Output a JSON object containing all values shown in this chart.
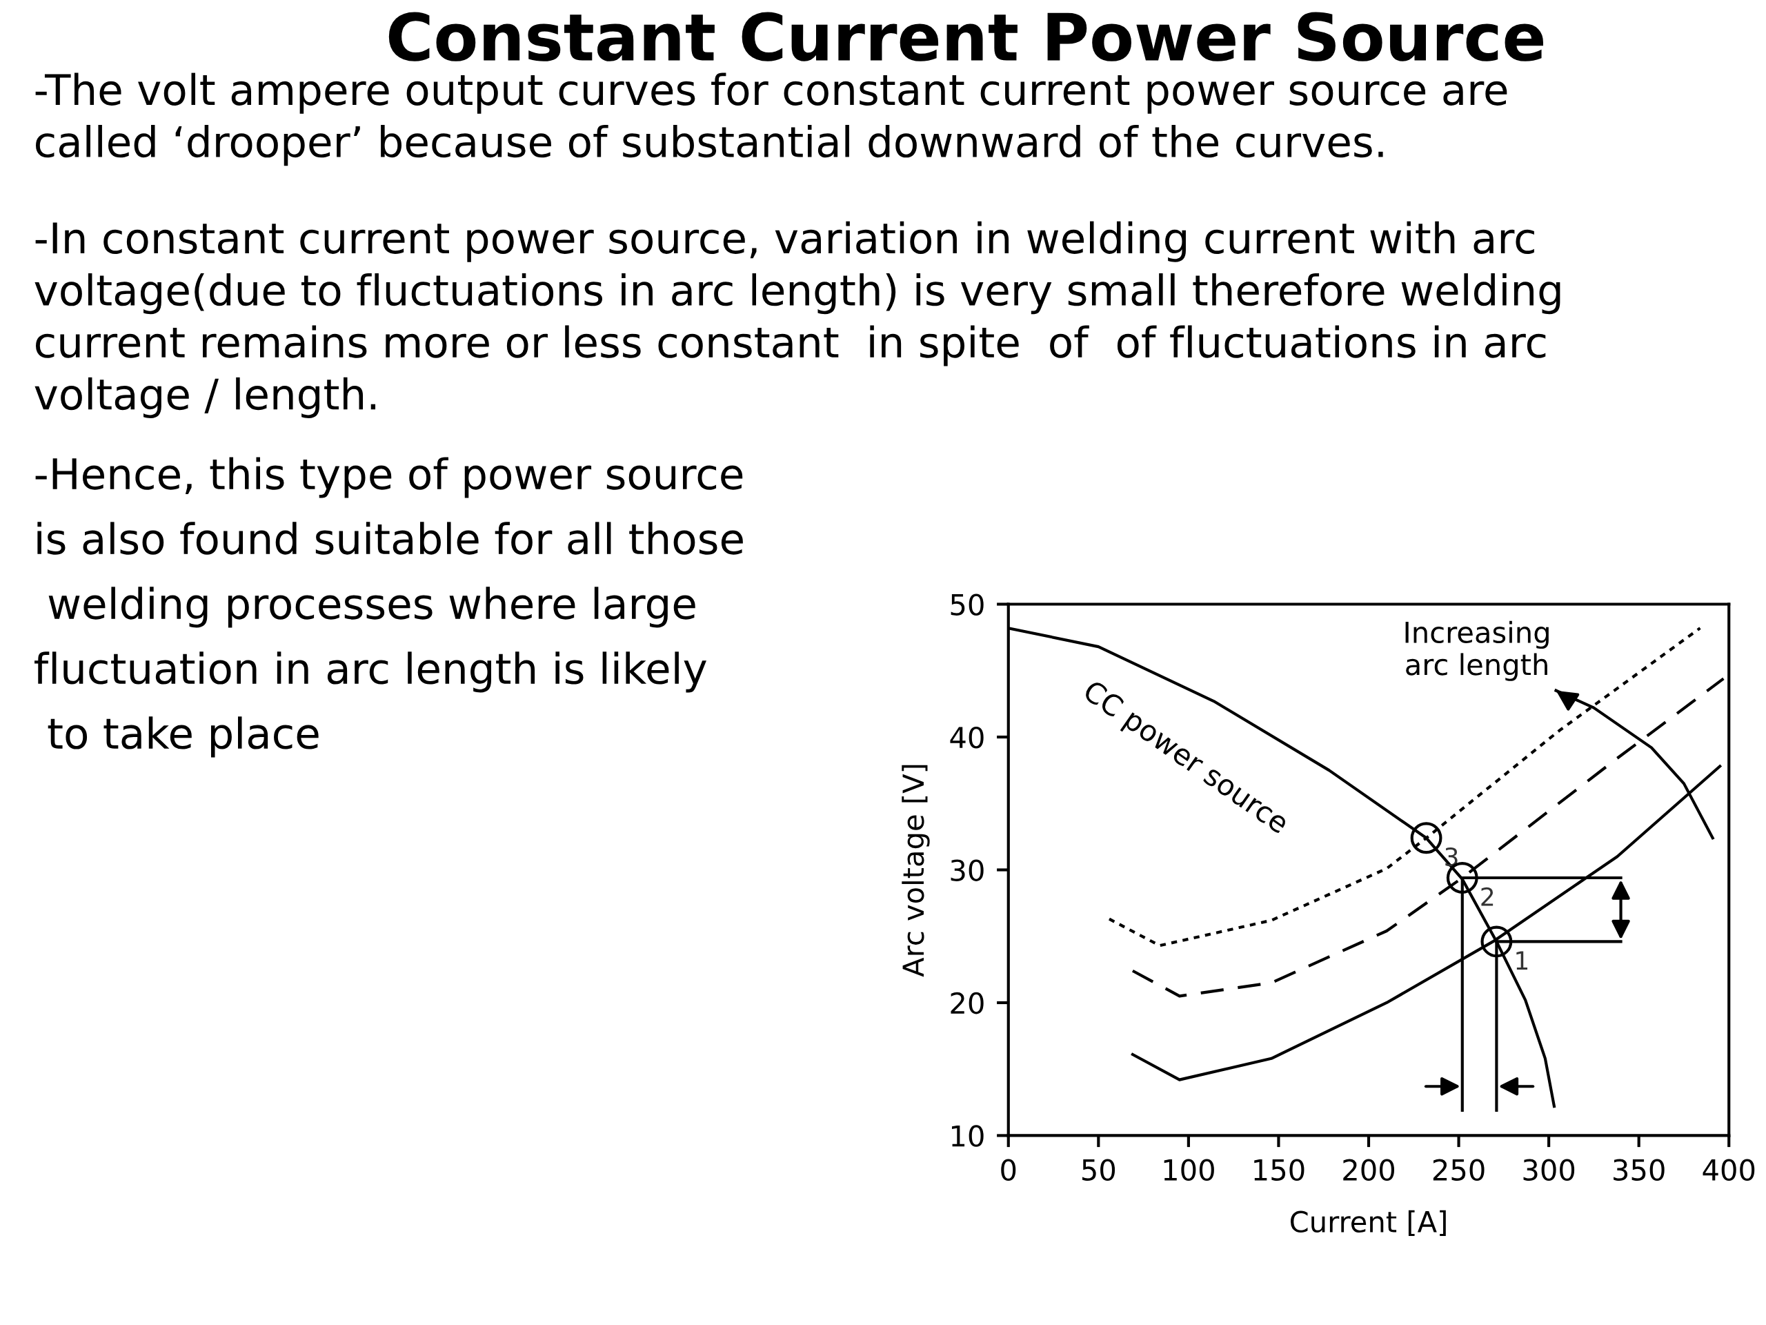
{
  "chart_data": {
    "type": "line",
    "title": "Constant Current Power Source",
    "annotations": [
      "-The volt ampere output curves for constant current power source are\ncalled ‘drooper’ because of substantial downward of the curves.",
      "-In constant current power source, variation in welding current with arc\nvoltage(due to fluctuations in arc length) is very small therefore welding\ncurrent remains more or less constant  in spite  of  of fluctuations in arc\nvoltage / length.",
      "-Hence, this type of power source\nis also found suitable for all those\n welding processes where large\nfluctuation in arc length is likely\n to take place",
      {
        "text": "Increasing\narc length",
        "x": 304,
        "y": 43.5
      },
      {
        "text": "1",
        "x": 271,
        "y": 24.6
      },
      {
        "text": "2",
        "x": 252,
        "y": 29.4
      },
      {
        "text": "3",
        "x": 232,
        "y": 32.4
      }
    ],
    "xlabel": "Current [A]",
    "ylabel": "Arc voltage [V]",
    "xlim": [
      0,
      400
    ],
    "ylim": [
      10,
      50
    ],
    "xticks": [
      0,
      50,
      100,
      150,
      200,
      250,
      300,
      350,
      400
    ],
    "yticks": [
      10,
      20,
      30,
      40,
      50
    ],
    "grid": false,
    "legend": false,
    "series": [
      {
        "name": "CC power source",
        "color": "#000000",
        "line_style": "solid",
        "x": [
          0,
          50,
          114,
          178,
          232,
          252,
          271,
          287,
          298,
          303
        ],
        "values": [
          48.2,
          46.8,
          42.7,
          37.5,
          32.4,
          29.3,
          24.6,
          20.2,
          15.8,
          12.2
        ]
      },
      {
        "color": "#000000",
        "line_style": "solid",
        "x": [
          69,
          95,
          146,
          210,
          269,
          338,
          395
        ],
        "values": [
          16.1,
          14.2,
          15.8,
          20.0,
          24.6,
          31.0,
          37.8
        ]
      },
      {
        "color": "#000000",
        "line_style": "dashed",
        "x": [
          69,
          95,
          146,
          210,
          252,
          338,
          397
        ],
        "values": [
          22.4,
          20.5,
          21.5,
          25.4,
          29.4,
          38.4,
          44.4
        ]
      },
      {
        "color": "#000000",
        "line_style": "dotted",
        "x": [
          56,
          84,
          146,
          210,
          232,
          306,
          384
        ],
        "values": [
          26.3,
          24.3,
          26.2,
          30.1,
          32.4,
          40.5,
          48.2
        ]
      },
      {
        "color": "#000000",
        "line_style": "solid",
        "x": [
          391,
          375,
          357,
          325,
          304
        ],
        "values": [
          32.4,
          36.5,
          39.2,
          42.2,
          43.5
        ]
      },
      {
        "color": "#000000",
        "line_style": "solid",
        "x": [
          252,
          340
        ],
        "values": [
          29.4,
          29.4
        ]
      },
      {
        "color": "#000000",
        "line_style": "solid",
        "x": [
          271,
          340
        ],
        "values": [
          24.6,
          24.6
        ]
      },
      {
        "color": "#000000",
        "line_style": "solid",
        "x": [
          252,
          252
        ],
        "values": [
          29.4,
          11.9
        ]
      },
      {
        "color": "#000000",
        "line_style": "solid",
        "x": [
          271,
          271
        ],
        "values": [
          24.6,
          11.9
        ]
      },
      {
        "type": "scatter",
        "color": "#000000",
        "marker": "circle",
        "x": [
          271,
          252,
          232
        ],
        "values": [
          24.6,
          29.4,
          32.4
        ]
      }
    ]
  }
}
